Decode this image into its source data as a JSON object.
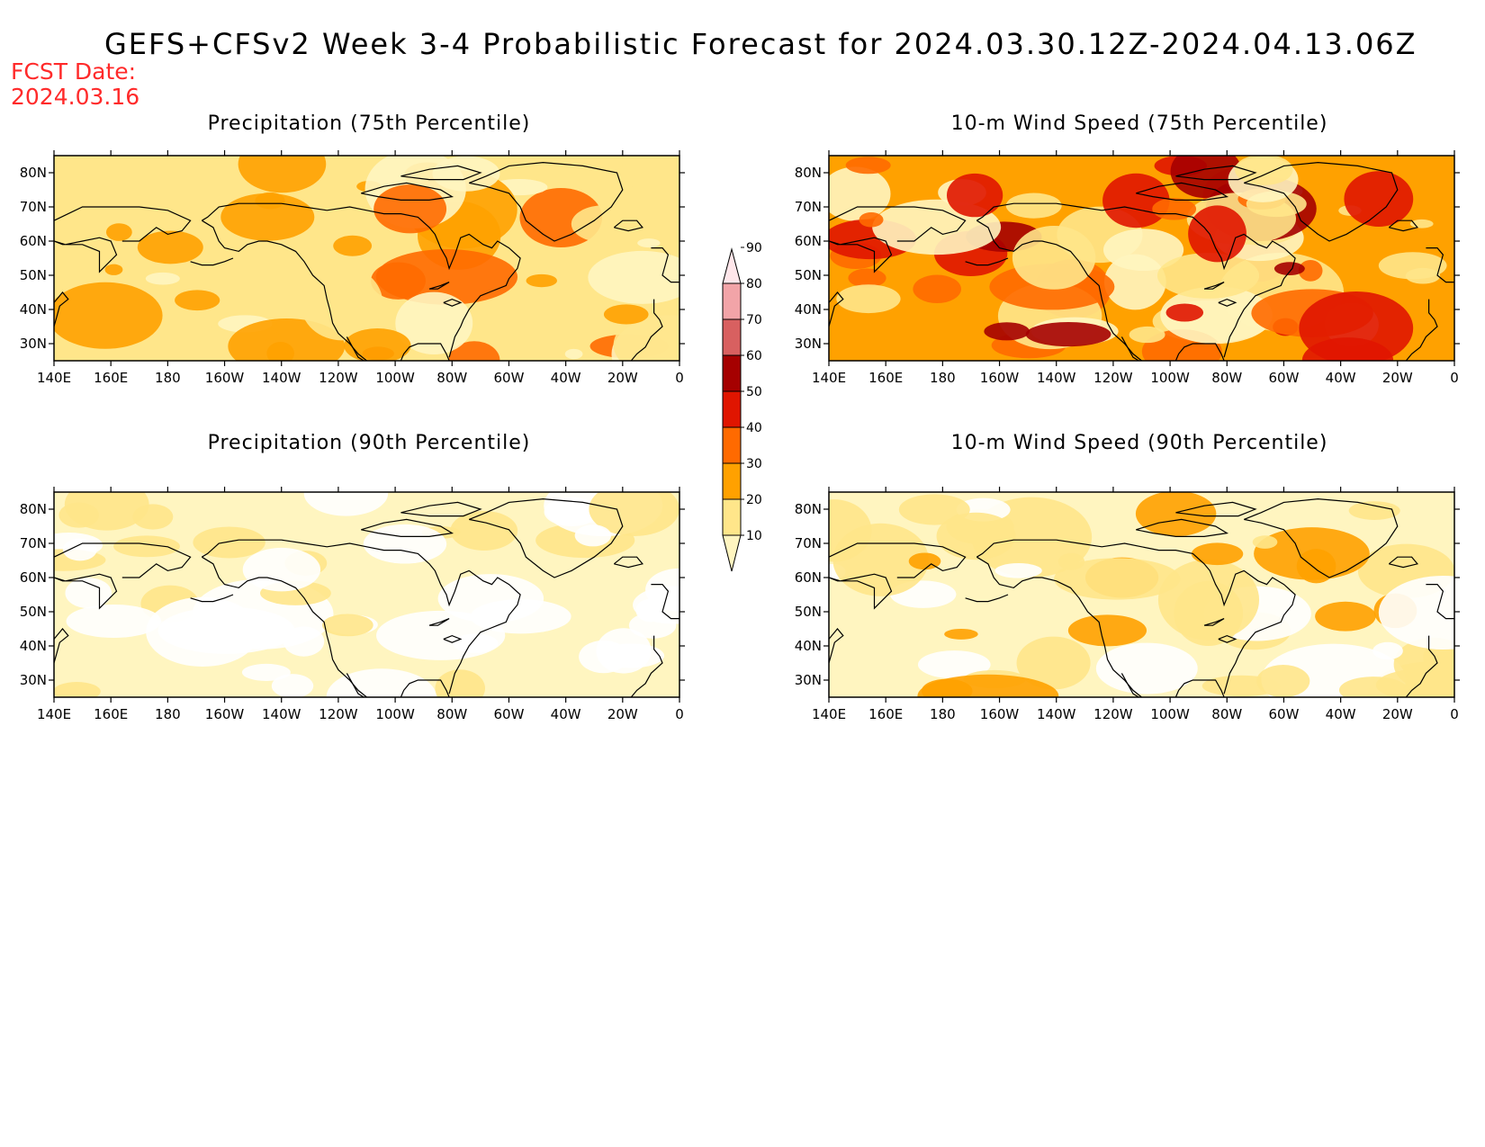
{
  "header": {
    "title": "GEFS+CFSv2 Week 3-4 Probabilistic Forecast for 2024.03.30.12Z-2024.04.13.06Z",
    "fcst_label": "FCST Date:",
    "fcst_date": "2024.03.16"
  },
  "axes": {
    "lon_ticks": [
      "140E",
      "160E",
      "180",
      "160W",
      "140W",
      "120W",
      "100W",
      "80W",
      "60W",
      "40W",
      "20W",
      "0"
    ],
    "lat_ticks": [
      "80N",
      "70N",
      "60N",
      "50N",
      "40N",
      "30N"
    ],
    "lon_range_deg_east": [
      140,
      360
    ],
    "lat_range": [
      25,
      85
    ]
  },
  "panels": [
    {
      "id": "precip-75",
      "title": "Precipitation (75th Percentile)",
      "base_level": 20
    },
    {
      "id": "wind-75",
      "title": "10-m Wind Speed (75th Percentile)",
      "base_level": 30
    },
    {
      "id": "precip-90",
      "title": "Precipitation (90th Percentile)",
      "base_level": 10
    },
    {
      "id": "wind-90",
      "title": "10-m Wind Speed (90th Percentile)",
      "base_level": 10
    }
  ],
  "colorbar": {
    "levels": [
      "10",
      "20",
      "30",
      "40",
      "50",
      "60",
      "70",
      "80",
      "90"
    ],
    "colors": [
      "#fff5c0",
      "#ffe68a",
      "#ffa100",
      "#ff6a00",
      "#e01500",
      "#a50000",
      "#d86060",
      "#f2a4a8",
      "#ffe6ea"
    ]
  }
}
